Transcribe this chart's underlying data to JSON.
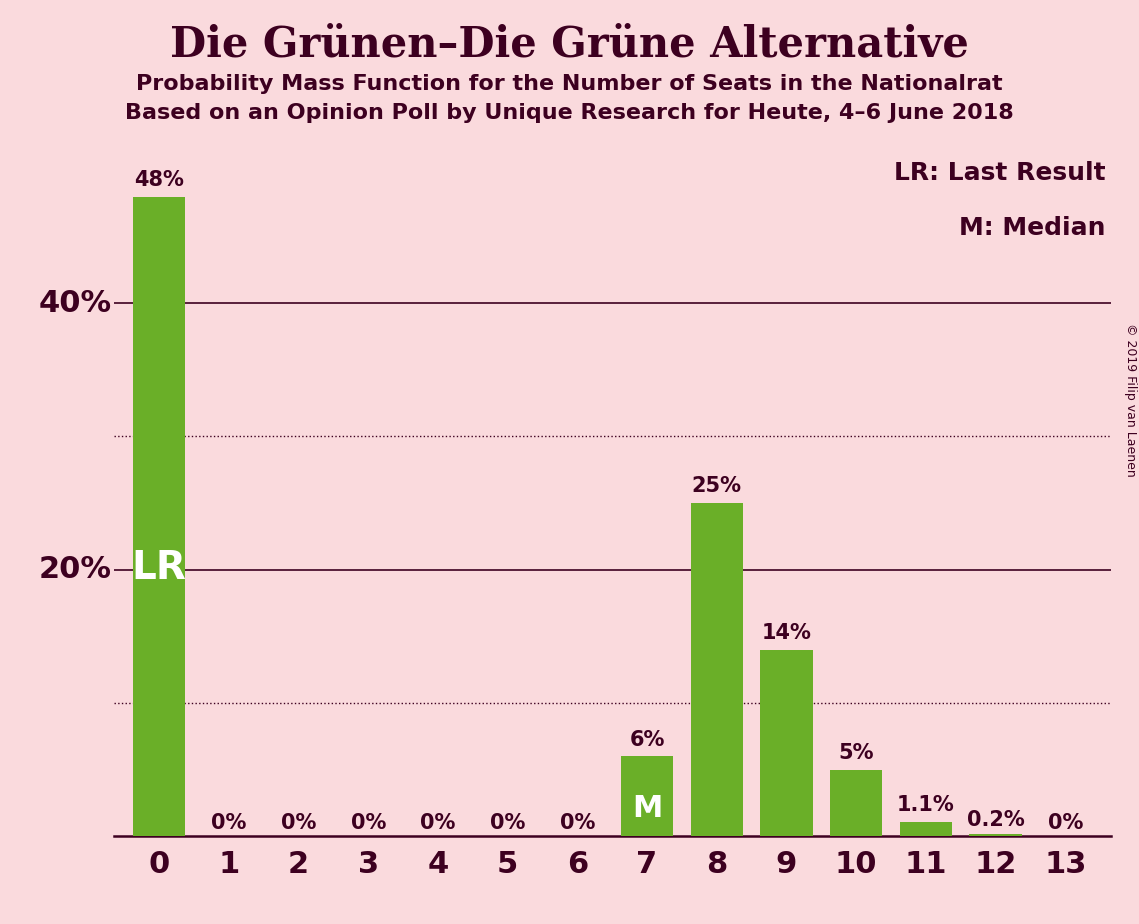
{
  "title": "Die Grünen–Die Grüne Alternative",
  "subtitle1": "Probability Mass Function for the Number of Seats in the Nationalrat",
  "subtitle2": "Based on an Opinion Poll by Unique Research for Heute, 4–6 June 2018",
  "copyright": "© 2019 Filip van Laenen",
  "categories": [
    0,
    1,
    2,
    3,
    4,
    5,
    6,
    7,
    8,
    9,
    10,
    11,
    12,
    13
  ],
  "values": [
    48,
    0,
    0,
    0,
    0,
    0,
    0,
    6,
    25,
    14,
    5,
    1.1,
    0.2,
    0
  ],
  "bar_color": "#6aaf28",
  "background_color": "#fadadd",
  "text_color": "#3d0020",
  "lr_seat": 0,
  "median_seat": 7,
  "lr_label": "LR",
  "median_label": "M",
  "legend_lr": "LR: Last Result",
  "legend_m": "M: Median",
  "ylim_max": 52,
  "solid_grid_lines": [
    20,
    40
  ],
  "dotted_grid_lines": [
    10,
    30
  ],
  "bar_labels": [
    "48%",
    "0%",
    "0%",
    "0%",
    "0%",
    "0%",
    "0%",
    "6%",
    "25%",
    "14%",
    "5%",
    "1.1%",
    "0.2%",
    "0%"
  ],
  "title_fontsize": 30,
  "subtitle_fontsize": 16,
  "axis_tick_fontsize": 22,
  "bar_label_fontsize": 15,
  "lr_fontsize": 28,
  "m_fontsize": 22,
  "legend_fontsize": 18,
  "ytick_label_fontsize": 22,
  "copyright_fontsize": 9
}
